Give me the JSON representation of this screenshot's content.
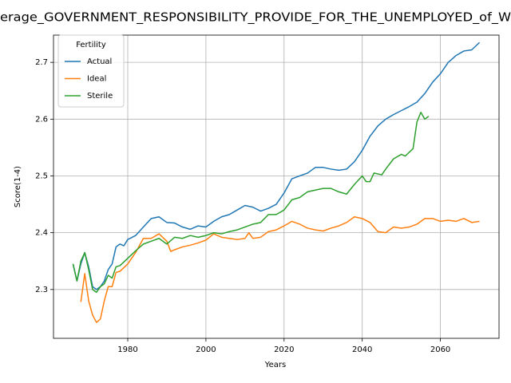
{
  "chart_data": {
    "type": "line",
    "title": "erage_GOVERNMENT_RESPONSIBILITY_PROVIDE_FOR_THE_UNEMPLOYED_of_W",
    "xlabel": "Years",
    "ylabel": "Score(1-4)",
    "legend_title": "Fertility",
    "legend": "upper left",
    "grid": true,
    "xlim": [
      1961,
      2075
    ],
    "ylim": [
      2.214,
      2.748
    ],
    "xticks": [
      1980,
      2000,
      2020,
      2040,
      2060
    ],
    "yticks": [
      2.3,
      2.4,
      2.5,
      2.6,
      2.7
    ],
    "series": [
      {
        "name": "Actual",
        "color": "#1f77b4",
        "x": [
          1966,
          1967,
          1968,
          1969,
          1970,
          1971,
          1972,
          1973,
          1974,
          1975,
          1976,
          1977,
          1978,
          1979,
          1980,
          1982,
          1984,
          1986,
          1988,
          1990,
          1992,
          1994,
          1996,
          1998,
          2000,
          2002,
          2004,
          2006,
          2008,
          2010,
          2012,
          2014,
          2016,
          2018,
          2020,
          2022,
          2024,
          2026,
          2028,
          2030,
          2032,
          2034,
          2036,
          2038,
          2040,
          2042,
          2044,
          2046,
          2048,
          2050,
          2052,
          2054,
          2056,
          2058,
          2060,
          2062,
          2064,
          2066,
          2068,
          2070
        ],
        "values": [
          2.345,
          2.315,
          2.345,
          2.365,
          2.34,
          2.305,
          2.3,
          2.305,
          2.315,
          2.335,
          2.345,
          2.375,
          2.38,
          2.377,
          2.388,
          2.395,
          2.41,
          2.425,
          2.428,
          2.418,
          2.417,
          2.41,
          2.406,
          2.412,
          2.41,
          2.42,
          2.428,
          2.432,
          2.44,
          2.448,
          2.445,
          2.438,
          2.443,
          2.45,
          2.47,
          2.495,
          2.5,
          2.505,
          2.515,
          2.515,
          2.512,
          2.51,
          2.512,
          2.525,
          2.545,
          2.57,
          2.588,
          2.6,
          2.608,
          2.615,
          2.622,
          2.63,
          2.645,
          2.665,
          2.68,
          2.7,
          2.712,
          2.72,
          2.722,
          2.735
        ]
      },
      {
        "name": "Ideal",
        "color": "#ff7f0e",
        "x": [
          1968,
          1969,
          1970,
          1971,
          1972,
          1973,
          1974,
          1975,
          1976,
          1977,
          1978,
          1980,
          1982,
          1984,
          1986,
          1988,
          1990,
          1991,
          1992,
          1994,
          1996,
          1998,
          2000,
          2002,
          2004,
          2006,
          2008,
          2010,
          2011,
          2012,
          2014,
          2016,
          2018,
          2020,
          2022,
          2024,
          2026,
          2028,
          2030,
          2032,
          2034,
          2036,
          2038,
          2040,
          2042,
          2044,
          2046,
          2048,
          2050,
          2052,
          2054,
          2056,
          2058,
          2060,
          2062,
          2064,
          2066,
          2068,
          2070
        ],
        "values": [
          2.278,
          2.328,
          2.28,
          2.255,
          2.242,
          2.248,
          2.28,
          2.305,
          2.305,
          2.33,
          2.332,
          2.345,
          2.365,
          2.39,
          2.39,
          2.398,
          2.385,
          2.367,
          2.37,
          2.375,
          2.378,
          2.382,
          2.387,
          2.398,
          2.392,
          2.39,
          2.388,
          2.39,
          2.4,
          2.39,
          2.392,
          2.402,
          2.405,
          2.412,
          2.42,
          2.415,
          2.408,
          2.405,
          2.403,
          2.408,
          2.412,
          2.418,
          2.428,
          2.425,
          2.418,
          2.402,
          2.4,
          2.41,
          2.408,
          2.41,
          2.415,
          2.425,
          2.425,
          2.42,
          2.422,
          2.42,
          2.425,
          2.418,
          2.42
        ]
      },
      {
        "name": "Sterile",
        "color": "#2ca02c",
        "x": [
          1966,
          1967,
          1968,
          1969,
          1970,
          1971,
          1972,
          1973,
          1974,
          1975,
          1976,
          1977,
          1978,
          1980,
          1982,
          1984,
          1986,
          1988,
          1990,
          1992,
          1994,
          1996,
          1998,
          2000,
          2002,
          2004,
          2006,
          2008,
          2010,
          2012,
          2014,
          2016,
          2018,
          2020,
          2022,
          2024,
          2026,
          2028,
          2030,
          2032,
          2034,
          2036,
          2038,
          2040,
          2041,
          2042,
          2043,
          2045,
          2046,
          2048,
          2050,
          2051,
          2053,
          2054,
          2055,
          2056,
          2057
        ],
        "values": [
          2.345,
          2.315,
          2.35,
          2.365,
          2.335,
          2.3,
          2.295,
          2.305,
          2.31,
          2.325,
          2.32,
          2.34,
          2.342,
          2.355,
          2.368,
          2.38,
          2.385,
          2.39,
          2.38,
          2.392,
          2.39,
          2.395,
          2.392,
          2.395,
          2.4,
          2.398,
          2.402,
          2.405,
          2.41,
          2.415,
          2.418,
          2.432,
          2.432,
          2.44,
          2.458,
          2.462,
          2.472,
          2.475,
          2.478,
          2.478,
          2.472,
          2.468,
          2.485,
          2.5,
          2.49,
          2.49,
          2.505,
          2.502,
          2.512,
          2.53,
          2.538,
          2.535,
          2.548,
          2.595,
          2.612,
          2.6,
          2.605
        ]
      }
    ]
  }
}
